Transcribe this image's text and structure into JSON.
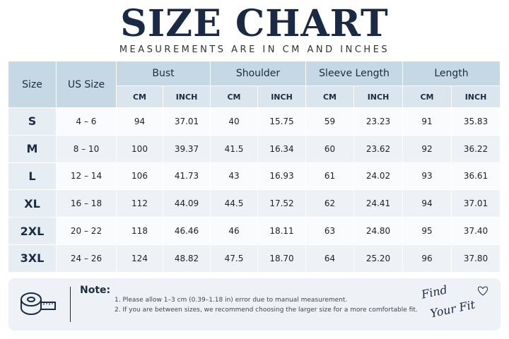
{
  "header": {
    "title": "SIZE CHART",
    "subtitle": "MEASUREMENTS ARE IN CM AND INCHES"
  },
  "table": {
    "size_header": "Size",
    "us_header": "US Size",
    "groups": [
      "Bust",
      "Shoulder",
      "Sleeve Length",
      "Length"
    ],
    "units": [
      "CM",
      "INCH"
    ],
    "rows": [
      [
        "S",
        "4 – 6",
        "94",
        "37.01",
        "40",
        "15.75",
        "59",
        "23.23",
        "91",
        "35.83"
      ],
      [
        "M",
        "8 – 10",
        "100",
        "39.37",
        "41.5",
        "16.34",
        "60",
        "23.62",
        "92",
        "36.22"
      ],
      [
        "L",
        "12 – 14",
        "106",
        "41.73",
        "43",
        "16.93",
        "61",
        "24.02",
        "93",
        "36.61"
      ],
      [
        "XL",
        "16 – 18",
        "112",
        "44.09",
        "44.5",
        "17.52",
        "62",
        "24.41",
        "94",
        "37.01"
      ],
      [
        "2XL",
        "20 – 22",
        "118",
        "46.46",
        "46",
        "18.11",
        "63",
        "24.80",
        "95",
        "37.40"
      ],
      [
        "3XL",
        "24 – 26",
        "124",
        "48.82",
        "47.5",
        "18.70",
        "64",
        "25.20",
        "96",
        "37.80"
      ]
    ]
  },
  "note": {
    "label": "Note:",
    "items": [
      "1. Please allow 1–3 cm (0.39–1.18 in) error due to manual measurement.",
      "2. If you are between sizes, we recommend choosing the larger size for a more comfortable fit."
    ]
  },
  "tagline": [
    "Find",
    "Your Fit"
  ]
}
